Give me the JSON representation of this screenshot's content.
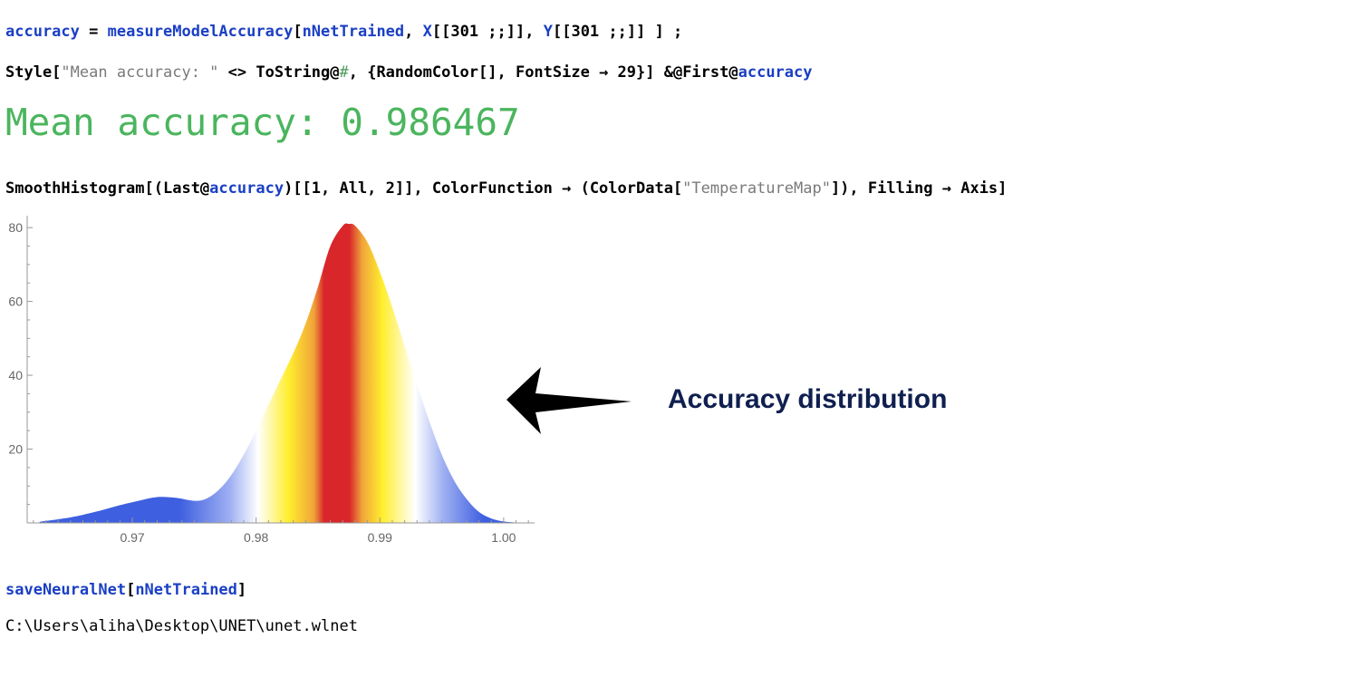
{
  "code": {
    "line1": {
      "var": "accuracy",
      "eq": " = ",
      "func": "measureModelAccuracy",
      "open": "[",
      "arg1": "nNetTrained",
      "comma1": ", ",
      "x": "X",
      "xpart": "[[301 ;;]]",
      "comma2": ", ",
      "y": "Y",
      "ypart": "[[301 ;;]] ] ;"
    },
    "line2": {
      "start": "Style[",
      "str": "\"Mean accuracy: \"",
      "mid": " <> ToString@",
      "slot": "#",
      "rest": ", {RandomColor[], FontSize → 29}] &@First@",
      "var": "accuracy"
    },
    "line3": {
      "start": "SmoothHistogram[(Last@",
      "var": "accuracy",
      "mid": ")[[1, All, 2]], ColorFunction → (ColorData[",
      "str": "\"TemperatureMap\"",
      "rest": "]), Filling → Axis]"
    },
    "line4": {
      "func": "saveNeuralNet",
      "open": "[",
      "arg": "nNetTrained",
      "close": "]"
    }
  },
  "output": {
    "mean_accuracy": "Mean accuracy: 0.986467",
    "saved_path": "C:\\Users\\aliha\\Desktop\\UNET\\unet.wlnet"
  },
  "annotation": {
    "label": "Accuracy distribution",
    "arrow_color": "#000000",
    "text_color": "#0f1f4f"
  },
  "chart_data": {
    "type": "area",
    "x": [
      0.9625,
      0.965,
      0.967,
      0.969,
      0.9705,
      0.972,
      0.9735,
      0.975,
      0.976,
      0.977,
      0.978,
      0.979,
      0.98,
      0.981,
      0.982,
      0.983,
      0.984,
      0.985,
      0.986,
      0.987,
      0.9875,
      0.988,
      0.989,
      0.99,
      0.991,
      0.992,
      0.993,
      0.994,
      0.995,
      0.996,
      0.997,
      0.998,
      0.999,
      1.0,
      1.001
    ],
    "y": [
      0.3,
      1.5,
      3.0,
      4.8,
      6.0,
      7.0,
      6.8,
      6.0,
      6.6,
      9.0,
      13.0,
      18.5,
      25.0,
      32.0,
      39.0,
      46.0,
      54.0,
      64.0,
      75.0,
      80.5,
      81.0,
      80.5,
      76.0,
      68.0,
      58.5,
      48.0,
      37.5,
      27.5,
      18.5,
      11.5,
      6.5,
      3.0,
      1.2,
      0.4,
      0.1
    ],
    "xlim": [
      0.9615,
      1.0025
    ],
    "ylim": [
      0,
      82
    ],
    "xticks": [
      "0.97",
      "0.98",
      "0.99",
      "1.00"
    ],
    "yticks": [
      "20",
      "40",
      "60",
      "80"
    ],
    "color_function": "TemperatureMap",
    "colors": {
      "blue": "#3e5fe0",
      "white": "#ffffff",
      "yellow": "#ffee2e",
      "orange": "#f0a43a",
      "red": "#d8262b"
    },
    "filling": "Axis",
    "grid": false
  }
}
